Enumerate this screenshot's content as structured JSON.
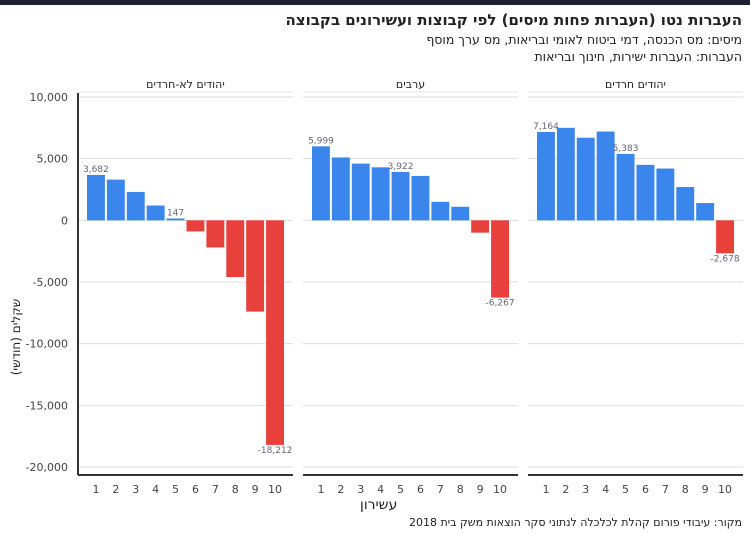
{
  "header": {
    "title": "העברות נטו (העברות פחות מיסים) לפי קבוצות ועשירונים בקבוצה",
    "subtitle1": "מיסים: מס הכנסה, דמי ביטוח לאומי ובריאות, מס ערך מוסף",
    "subtitle2": "העברות: העברות ישירות, חינוך ובריאות"
  },
  "footer": {
    "source": "מקור: עיבודי פורום קהלת לכלכלה לנתוני סקר הוצאות משק בית 2018"
  },
  "colors": {
    "positive": "#3b86ec",
    "negative": "#e8403a",
    "grid": "#dddddd",
    "axis": "#333333"
  },
  "chart_data": {
    "type": "bar",
    "title": "העברות נטו (העברות פחות מיסים) לפי קבוצות ועשירונים בקבוצה",
    "xlabel": "עשירון",
    "ylabel": "שקלים (חודשי)",
    "ylim": [
      -20000,
      10000
    ],
    "yticks": [
      10000,
      5000,
      0,
      -5000,
      -10000,
      -15000,
      -20000
    ],
    "ytick_labels": [
      "10,000",
      "5,000",
      "0",
      "-5,000",
      "-10,000",
      "-15,000",
      "-20,000"
    ],
    "grid": true,
    "categories": [
      "1",
      "2",
      "3",
      "4",
      "5",
      "6",
      "7",
      "8",
      "9",
      "10"
    ],
    "panels": [
      {
        "name": "יהודים לא-חרדים",
        "values": [
          3682,
          3300,
          2300,
          1200,
          147,
          -900,
          -2200,
          -4600,
          -7400,
          -18212
        ],
        "labels": {
          "0": "3,682",
          "4": "147",
          "9": "-18,212"
        }
      },
      {
        "name": "ערבים",
        "values": [
          5999,
          5100,
          4600,
          4300,
          3922,
          3600,
          1500,
          1100,
          -1000,
          -6267
        ],
        "labels": {
          "0": "5,999",
          "4": "3,922",
          "9": "-6,267"
        }
      },
      {
        "name": "יהודים חרדים",
        "values": [
          7164,
          7500,
          6700,
          7200,
          5383,
          4500,
          4200,
          2700,
          1400,
          -2678
        ],
        "labels": {
          "0": "7,164",
          "4": "5,383",
          "9": "-2,678"
        }
      }
    ]
  }
}
